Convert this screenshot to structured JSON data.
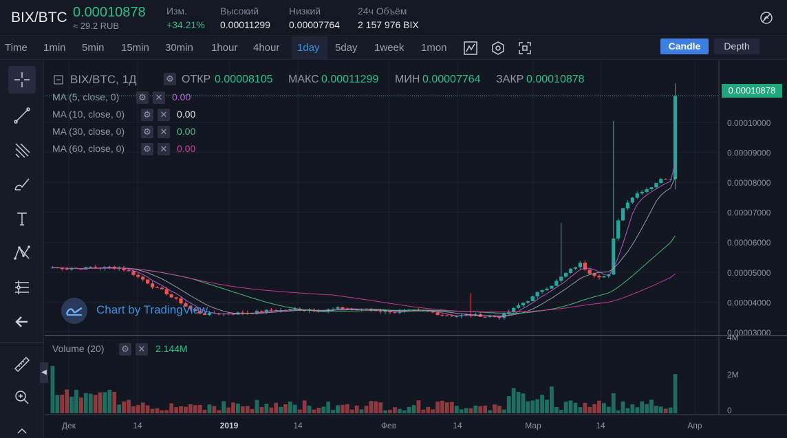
{
  "ticker": {
    "pair": "BIX/BTC",
    "last_price": "0.00010878",
    "last_price_fiat": "≈ 29.2 RUB",
    "stats": [
      {
        "label": "Изм.",
        "value": "+34.21%",
        "up": true
      },
      {
        "label": "Высокий",
        "value": "0.00011299",
        "up": false
      },
      {
        "label": "Низкий",
        "value": "0.00007764",
        "up": false
      },
      {
        "label": "24ч Объём",
        "value": "2 157 976 BIX",
        "up": false
      }
    ]
  },
  "toolbar": {
    "timeframes": [
      "Time",
      "1min",
      "5min",
      "15min",
      "30min",
      "1hour",
      "4hour",
      "1day",
      "5day",
      "1week",
      "1mon"
    ],
    "active_timeframe": "1day",
    "candle_label": "Candle",
    "depth_label": "Depth"
  },
  "legend": {
    "title": "BIX/BTC, 1Д",
    "open_label": "ОТКР",
    "open": "0.00008105",
    "high_label": "МАКС",
    "high": "0.00011299",
    "low_label": "МИН",
    "low": "0.00007764",
    "close_label": "ЗАКР",
    "close": "0.00010878",
    "ma": [
      {
        "label": "MA (5, close, 0)",
        "value": "0.00",
        "color": "#c05fd6"
      },
      {
        "label": "MA (10, close, 0)",
        "value": "0.00",
        "color": "#e3e5ea"
      },
      {
        "label": "MA (30, close, 0)",
        "value": "0.00",
        "color": "#4cc47f"
      },
      {
        "label": "MA (60, close, 0)",
        "value": "0.00",
        "color": "#d63ba4"
      }
    ],
    "volume_label": "Volume (20)",
    "volume_value": "2.144M"
  },
  "watermark": "Chart by TradingView",
  "price_tag": "0.00010878",
  "colors": {
    "up": "#26a69a",
    "down": "#ef5350",
    "up_bright": "#26c18e"
  },
  "chart_data": {
    "type": "candlestick",
    "price_axis_ticks": [
      "0.00003000",
      "0.00004000",
      "0.00005000",
      "0.00006000",
      "0.00007000",
      "0.00008000",
      "0.00009000",
      "0.00010000"
    ],
    "volume_axis_ticks": [
      "0",
      "2M",
      "4M"
    ],
    "time_axis_ticks": [
      "Дек",
      "14",
      "2019",
      "14",
      "Фев",
      "14",
      "Мар",
      "14",
      "Апр"
    ],
    "last_close": 0.00010878
  }
}
